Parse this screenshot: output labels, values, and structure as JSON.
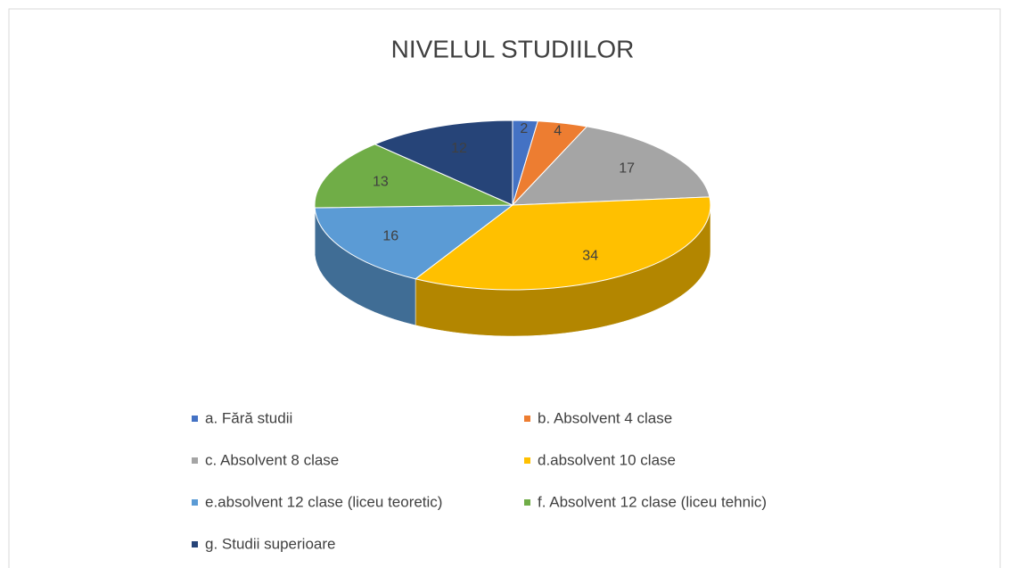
{
  "chart_data": {
    "type": "pie",
    "title": "NIVELUL STUDIILOR",
    "categories": [
      "a. Fără studii",
      "b. Absolvent 4 clase",
      "c. Absolvent 8 clase",
      "d.absolvent 10 clase",
      "e.absolvent 12 clase (liceu teoretic)",
      "f. Absolvent 12 clase (liceu tehnic)",
      "g. Studii superioare"
    ],
    "values": [
      2,
      4,
      17,
      34,
      16,
      13,
      12
    ],
    "colors": [
      "#4472c4",
      "#ed7d31",
      "#a5a5a5",
      "#ffc000",
      "#5b9bd5",
      "#70ad47",
      "#264478"
    ],
    "legend": "bottom"
  }
}
